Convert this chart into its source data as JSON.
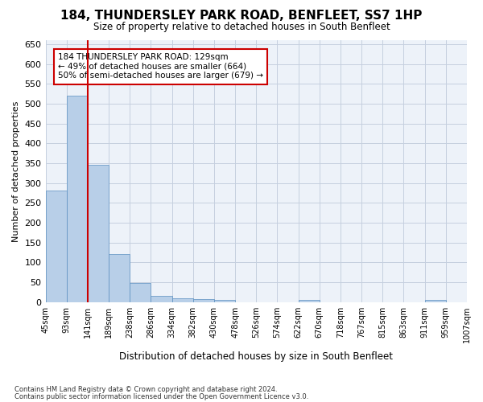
{
  "title": "184, THUNDERSLEY PARK ROAD, BENFLEET, SS7 1HP",
  "subtitle": "Size of property relative to detached houses in South Benfleet",
  "xlabel": "Distribution of detached houses by size in South Benfleet",
  "ylabel": "Number of detached properties",
  "footnote1": "Contains HM Land Registry data © Crown copyright and database right 2024.",
  "footnote2": "Contains public sector information licensed under the Open Government Licence v3.0.",
  "annotation_line1": "184 THUNDERSLEY PARK ROAD: 129sqm",
  "annotation_line2": "← 49% of detached houses are smaller (664)",
  "annotation_line3": "50% of semi-detached houses are larger (679) →",
  "bar_values": [
    280,
    520,
    345,
    120,
    48,
    16,
    10,
    8,
    5,
    0,
    0,
    0,
    5,
    0,
    0,
    0,
    0,
    0,
    5,
    0
  ],
  "xtick_labels": [
    "45sqm",
    "93sqm",
    "141sqm",
    "189sqm",
    "238sqm",
    "286sqm",
    "334sqm",
    "382sqm",
    "430sqm",
    "478sqm",
    "526sqm",
    "574sqm",
    "622sqm",
    "670sqm",
    "718sqm",
    "767sqm",
    "815sqm",
    "863sqm",
    "911sqm",
    "959sqm",
    "1007sqm"
  ],
  "bar_color": "#b8cfe8",
  "bar_edge_color": "#5a8fc0",
  "redline_x": 1.5,
  "ylim": [
    0,
    660
  ],
  "yticks": [
    0,
    50,
    100,
    150,
    200,
    250,
    300,
    350,
    400,
    450,
    500,
    550,
    600,
    650
  ],
  "annotation_box_facecolor": "#ffffff",
  "annotation_box_edgecolor": "#cc0000",
  "redline_color": "#cc0000",
  "axes_facecolor": "#edf2f9",
  "grid_color": "#c5cfdf",
  "figure_facecolor": "#ffffff"
}
